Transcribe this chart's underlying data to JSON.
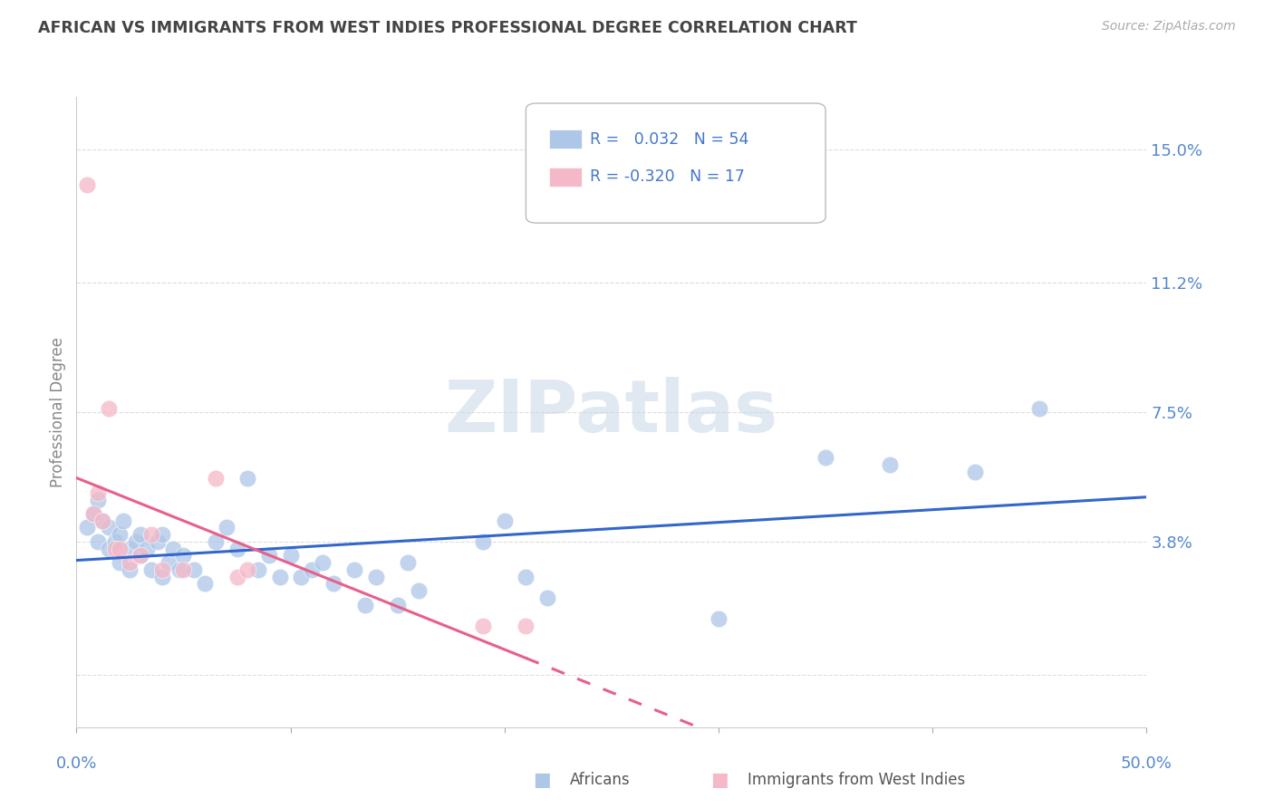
{
  "title": "AFRICAN VS IMMIGRANTS FROM WEST INDIES PROFESSIONAL DEGREE CORRELATION CHART",
  "source": "Source: ZipAtlas.com",
  "ylabel": "Professional Degree",
  "yticks": [
    0.0,
    0.038,
    0.075,
    0.112,
    0.15
  ],
  "ytick_labels": [
    "",
    "3.8%",
    "7.5%",
    "11.2%",
    "15.0%"
  ],
  "xlim": [
    0.0,
    0.5
  ],
  "ylim": [
    -0.015,
    0.165
  ],
  "legend_african_R": " 0.032",
  "legend_african_N": "54",
  "legend_west_R": "-0.320",
  "legend_west_N": "17",
  "african_color": "#aec6e8",
  "west_color": "#f4b8c8",
  "african_line_color": "#3366cc",
  "west_line_color": "#e8608a",
  "title_color": "#444444",
  "source_color": "#aaaaaa",
  "axis_label_color": "#5588cc",
  "ylabel_color": "#888888",
  "background_color": "#ffffff",
  "grid_color": "#dddddd",
  "watermark_color": "#ccd9ea",
  "africans_x": [
    0.005,
    0.008,
    0.01,
    0.01,
    0.012,
    0.015,
    0.015,
    0.018,
    0.02,
    0.02,
    0.022,
    0.025,
    0.025,
    0.028,
    0.03,
    0.03,
    0.033,
    0.035,
    0.038,
    0.04,
    0.04,
    0.043,
    0.045,
    0.048,
    0.05,
    0.055,
    0.06,
    0.065,
    0.07,
    0.075,
    0.08,
    0.085,
    0.09,
    0.095,
    0.1,
    0.105,
    0.11,
    0.115,
    0.12,
    0.13,
    0.135,
    0.14,
    0.15,
    0.155,
    0.16,
    0.19,
    0.2,
    0.21,
    0.22,
    0.3,
    0.35,
    0.38,
    0.42,
    0.45
  ],
  "africans_y": [
    0.042,
    0.046,
    0.05,
    0.038,
    0.044,
    0.042,
    0.036,
    0.038,
    0.04,
    0.032,
    0.044,
    0.036,
    0.03,
    0.038,
    0.04,
    0.034,
    0.036,
    0.03,
    0.038,
    0.028,
    0.04,
    0.032,
    0.036,
    0.03,
    0.034,
    0.03,
    0.026,
    0.038,
    0.042,
    0.036,
    0.056,
    0.03,
    0.034,
    0.028,
    0.034,
    0.028,
    0.03,
    0.032,
    0.026,
    0.03,
    0.02,
    0.028,
    0.02,
    0.032,
    0.024,
    0.038,
    0.044,
    0.028,
    0.022,
    0.016,
    0.062,
    0.06,
    0.058,
    0.076
  ],
  "west_x": [
    0.005,
    0.008,
    0.01,
    0.012,
    0.015,
    0.018,
    0.02,
    0.025,
    0.03,
    0.035,
    0.04,
    0.05,
    0.065,
    0.075,
    0.08,
    0.19,
    0.21
  ],
  "west_y": [
    0.14,
    0.046,
    0.052,
    0.044,
    0.076,
    0.036,
    0.036,
    0.032,
    0.034,
    0.04,
    0.03,
    0.03,
    0.056,
    0.028,
    0.03,
    0.014,
    0.014
  ]
}
